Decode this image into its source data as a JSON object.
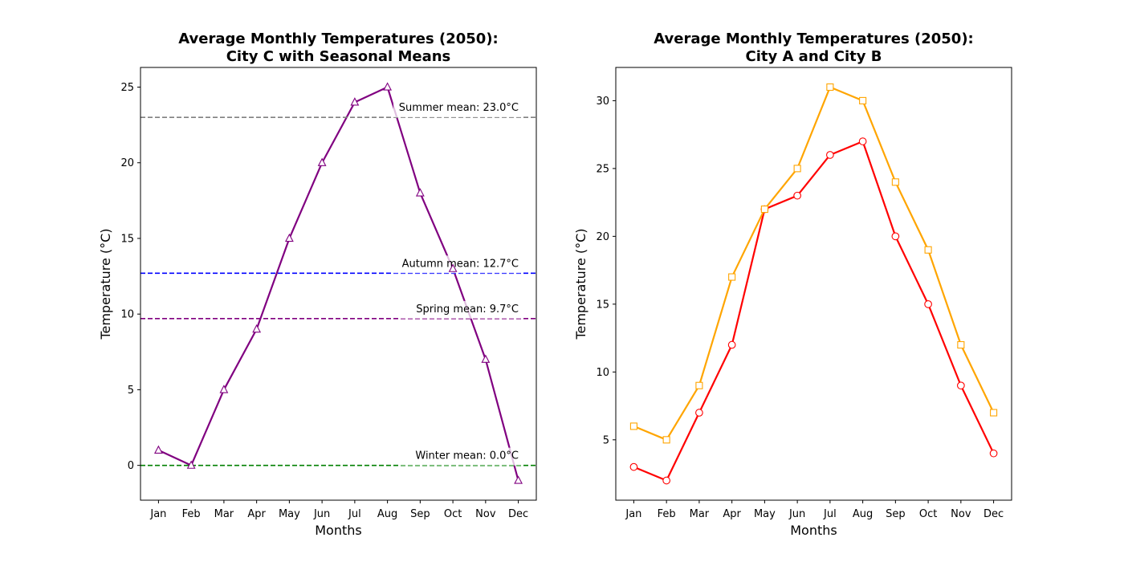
{
  "chart_data": [
    {
      "type": "line",
      "title": [
        "Average Monthly Temperatures (2050):",
        "City C with Seasonal Means"
      ],
      "xlabel": "Months",
      "ylabel": "Temperature (°C)",
      "categories": [
        "Jan",
        "Feb",
        "Mar",
        "Apr",
        "May",
        "Jun",
        "Jul",
        "Aug",
        "Sep",
        "Oct",
        "Nov",
        "Dec"
      ],
      "ylim": [
        -2.3,
        26.3
      ],
      "yticks": [
        0,
        5,
        10,
        15,
        20,
        25
      ],
      "grid": false,
      "series": [
        {
          "values": [
            1,
            0,
            5,
            9,
            15,
            20,
            24,
            25,
            18,
            13,
            7,
            -1
          ],
          "color": "#800080",
          "marker": "triangle"
        }
      ],
      "hlines": [
        {
          "value": 23.0,
          "label": "Summer mean: 23.0°C",
          "color": "#808080"
        },
        {
          "value": 12.7,
          "label": "Autumn mean: 12.7°C",
          "color": "#0000ff"
        },
        {
          "value": 9.7,
          "label": "Spring mean: 9.7°C",
          "color": "#800080"
        },
        {
          "value": 0.0,
          "label": "Winter mean: 0.0°C",
          "color": "#008000"
        }
      ]
    },
    {
      "type": "line",
      "title": [
        "Average Monthly Temperatures (2050):",
        "City A and City B"
      ],
      "xlabel": "Months",
      "ylabel": "Temperature (°C)",
      "categories": [
        "Jan",
        "Feb",
        "Mar",
        "Apr",
        "May",
        "Jun",
        "Jul",
        "Aug",
        "Sep",
        "Oct",
        "Nov",
        "Dec"
      ],
      "ylim": [
        0.55,
        32.45
      ],
      "yticks": [
        5,
        10,
        15,
        20,
        25,
        30
      ],
      "grid": false,
      "series": [
        {
          "values": [
            3,
            2,
            7,
            12,
            22,
            23,
            26,
            27,
            20,
            15,
            9,
            4
          ],
          "color": "#ff0000",
          "marker": "circle"
        },
        {
          "values": [
            6,
            5,
            9,
            17,
            22,
            25,
            31,
            30,
            24,
            19,
            12,
            7
          ],
          "color": "#ffa500",
          "marker": "square"
        }
      ]
    }
  ]
}
